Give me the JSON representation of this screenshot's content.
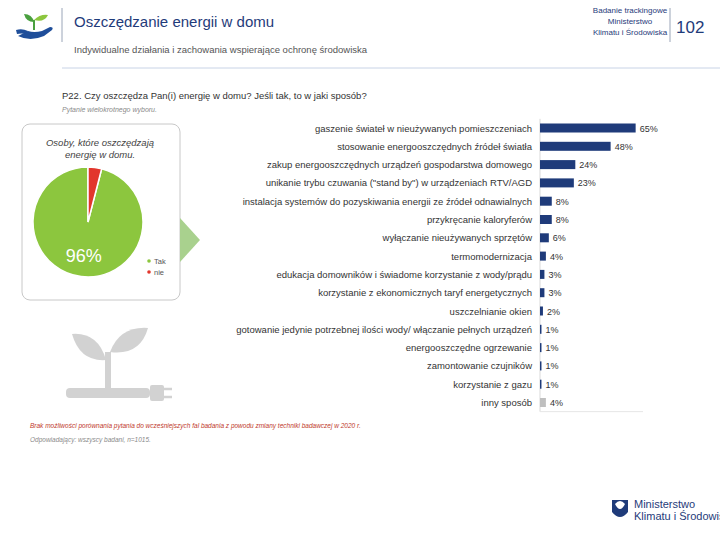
{
  "page": {
    "header": {
      "title": "Oszczędzanie energii w domu",
      "subtitle": "Indywidualne działania i zachowania wspierające ochronę środowiska",
      "source_lines": [
        "Badanie trackingowe",
        "Ministerstwo",
        "Klimatu i Środowiska"
      ],
      "page_number": 102
    },
    "question": "P22. Czy oszczędza Pan(i) energię w domu? Jeśli tak, to w jaki sposób?",
    "question_note": "Pytanie wielokrotnego wyboru.",
    "notes": [
      "Brak możliwości porównania pytania do wcześniejszych fal badania z powodu zmiany techniki badawczej w 2020 r."
    ],
    "sample_note": "Odpowiadający: wszyscy badani, n=1015.",
    "logo": [
      "Ministerstwo",
      "Klimatu i Środowiska"
    ]
  },
  "chart_data": [
    {
      "type": "pie",
      "title": "Osoby, które oszczędzają energię w domu.",
      "categories": [
        "Tak",
        "nie"
      ],
      "values": [
        96,
        4
      ],
      "colors": [
        "#8cc63e",
        "#e2362c"
      ],
      "data_labels": true,
      "value_labels": [
        "96%",
        null
      ],
      "legend": "right"
    },
    {
      "type": "bar",
      "orientation": "horizontal",
      "categories": [
        "gaszenie świateł w nieużywanych pomieszczeniach",
        "stosowanie energooszczędnych źródeł światła",
        "zakup energooszczędnych urządzeń gospodarstwa domowego",
        "unikanie trybu czuwania (\"stand by\") w urządzeniach RTV/AGD",
        "instalacja systemów do pozyskiwania energii ze źródeł odnawialnych",
        "przykręcanie kaloryferów",
        "wyłączanie nieużywanych sprzętów",
        "termomodernizacja",
        "edukacja domowników i świadome korzystanie z wody/prądu",
        "korzystanie z ekonomicznych taryf energetycznych",
        "uszczelnianie okien",
        "gotowanie jedynie potrzebnej ilości wody/ włączanie pełnych urządzeń",
        "energooszczędne ogrzewanie",
        "zamontowanie czujników",
        "korzystanie z gazu",
        "inny sposób"
      ],
      "values": [
        65,
        48,
        24,
        23,
        8,
        8,
        6,
        4,
        3,
        3,
        2,
        1,
        1,
        1,
        1,
        4
      ],
      "value_labels": [
        "65%",
        "48%",
        "24%",
        "23%",
        "8%",
        "8%",
        "6%",
        "4%",
        "3%",
        "3%",
        "2%",
        "1%",
        "1%",
        "1%",
        "1%",
        "4%"
      ],
      "data_labels": true,
      "colors": [
        "#1f3b7a",
        "#1f3b7a",
        "#1f3b7a",
        "#1f3b7a",
        "#1f3b7a",
        "#1f3b7a",
        "#1f3b7a",
        "#1f3b7a",
        "#1f3b7a",
        "#1f3b7a",
        "#1f3b7a",
        "#1f3b7a",
        "#1f3b7a",
        "#1f3b7a",
        "#1f3b7a",
        "#bfbfbf"
      ],
      "xlim": [
        0,
        70
      ],
      "grid": false,
      "tick_labels": false
    }
  ]
}
